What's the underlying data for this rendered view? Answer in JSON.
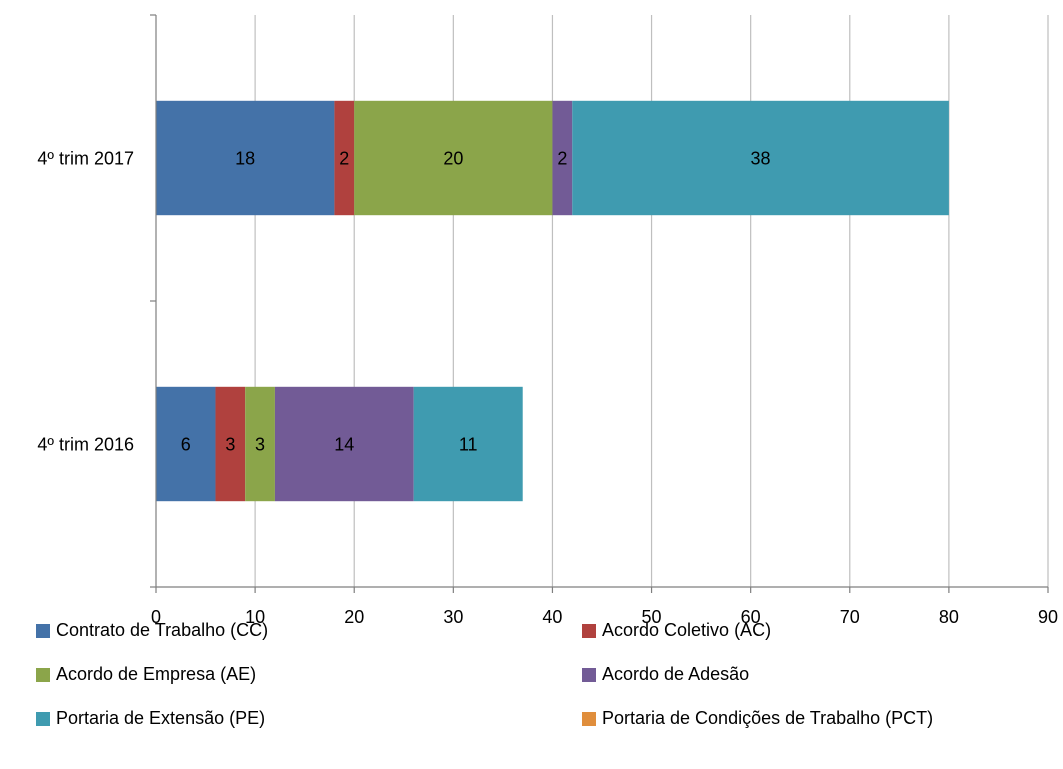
{
  "chart_data": {
    "type": "bar",
    "orientation": "horizontal",
    "stacked": true,
    "categories": [
      "4º trim 2016",
      "4º trim 2017"
    ],
    "series": [
      {
        "name": "Contrato de Trabalho (CC)",
        "values": [
          6,
          18
        ],
        "color": "#4472A8"
      },
      {
        "name": "Acordo Coletivo  (AC)",
        "values": [
          3,
          2
        ],
        "color": "#B0413E"
      },
      {
        "name": "Acordo de Empresa (AE)",
        "values": [
          3,
          20
        ],
        "color": "#8BA54A"
      },
      {
        "name": "Acordo de Adesão",
        "values": [
          14,
          2
        ],
        "color": "#725B96"
      },
      {
        "name": "Portaria de Extensão (PE)",
        "values": [
          11,
          38
        ],
        "color": "#3F9BB0"
      },
      {
        "name": "Portaria de Condições de Trabalho (PCT)",
        "values": [
          0,
          0
        ],
        "color": "#E08E3C"
      }
    ],
    "x_ticks": [
      "0",
      "10",
      "20",
      "30",
      "40",
      "50",
      "60",
      "70",
      "80",
      "90"
    ],
    "xlim": [
      0,
      90
    ],
    "grid": true,
    "legend_position": "bottom",
    "title": "",
    "xlabel": "",
    "ylabel": ""
  }
}
